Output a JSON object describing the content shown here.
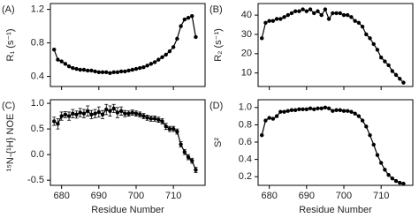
{
  "chart_data": [
    {
      "type": "line",
      "panel_label": "(A)",
      "y_label": "R₁ (s⁻¹)",
      "color": "#000000",
      "x": [
        678,
        679,
        680,
        681,
        682,
        683,
        684,
        685,
        686,
        687,
        688,
        689,
        690,
        691,
        692,
        693,
        694,
        695,
        696,
        697,
        698,
        699,
        700,
        701,
        702,
        703,
        704,
        705,
        706,
        707,
        708,
        709,
        710,
        711,
        712,
        713,
        714,
        715,
        716
      ],
      "values": [
        0.72,
        0.6,
        0.58,
        0.55,
        0.52,
        0.5,
        0.49,
        0.48,
        0.48,
        0.47,
        0.47,
        0.46,
        0.45,
        0.45,
        0.45,
        0.44,
        0.45,
        0.45,
        0.46,
        0.46,
        0.47,
        0.48,
        0.49,
        0.5,
        0.51,
        0.53,
        0.55,
        0.57,
        0.6,
        0.63,
        0.66,
        0.7,
        0.75,
        0.85,
        1.0,
        1.08,
        1.1,
        1.12,
        0.87
      ],
      "xlim": [
        677,
        718.5
      ],
      "xticks": [
        680,
        690,
        700,
        710
      ],
      "ylim": [
        0.28,
        1.27
      ],
      "yticks": [
        0.4,
        0.8,
        1.2
      ]
    },
    {
      "type": "line",
      "panel_label": "(B)",
      "y_label": "R₂ (s⁻¹)",
      "color": "#000000",
      "x": [
        678,
        679,
        680,
        681,
        682,
        683,
        684,
        685,
        686,
        687,
        688,
        689,
        690,
        691,
        692,
        693,
        694,
        695,
        696,
        697,
        698,
        699,
        700,
        701,
        702,
        703,
        704,
        705,
        706,
        707,
        708,
        709,
        710,
        711,
        712,
        713,
        714,
        715,
        716
      ],
      "values": [
        28,
        36,
        37,
        37,
        38,
        38,
        39,
        40,
        41,
        42,
        42,
        43,
        42,
        43,
        41,
        42,
        40,
        43,
        38,
        41,
        41,
        41,
        40,
        40,
        39,
        37,
        36,
        34,
        30,
        28,
        25,
        22,
        18,
        16,
        14,
        11,
        9,
        7,
        5
      ],
      "xlim": [
        677,
        718.5
      ],
      "xticks": [
        680,
        690,
        700,
        710
      ],
      "ylim": [
        3,
        46
      ],
      "yticks": [
        10,
        20,
        30,
        40
      ]
    },
    {
      "type": "line",
      "panel_label": "(C)",
      "y_label": "¹⁵N-{¹H} NOE",
      "x_label": "Residue Number",
      "color": "#000000",
      "x": [
        678,
        679,
        680,
        681,
        682,
        683,
        684,
        685,
        686,
        687,
        688,
        689,
        690,
        691,
        692,
        693,
        694,
        695,
        696,
        697,
        698,
        699,
        700,
        701,
        702,
        703,
        704,
        705,
        706,
        707,
        708,
        709,
        710,
        711,
        712,
        713,
        714,
        715,
        716
      ],
      "values": [
        0.65,
        0.6,
        0.75,
        0.78,
        0.75,
        0.8,
        0.78,
        0.82,
        0.8,
        0.85,
        0.78,
        0.8,
        0.83,
        0.78,
        0.88,
        0.85,
        0.9,
        0.82,
        0.85,
        0.8,
        0.8,
        0.82,
        0.8,
        0.78,
        0.75,
        0.72,
        0.7,
        0.7,
        0.68,
        0.65,
        0.55,
        0.5,
        0.5,
        0.45,
        0.2,
        0.05,
        -0.05,
        -0.12,
        -0.3
      ],
      "errors": [
        0.08,
        0.1,
        0.08,
        0.06,
        0.08,
        0.08,
        0.07,
        0.08,
        0.08,
        0.1,
        0.08,
        0.08,
        0.1,
        0.08,
        0.1,
        0.1,
        0.08,
        0.1,
        0.08,
        0.06,
        0.05,
        0.05,
        0.05,
        0.05,
        0.05,
        0.05,
        0.05,
        0.05,
        0.05,
        0.05,
        0.06,
        0.05,
        0.05,
        0.05,
        0.05,
        0.05,
        0.05,
        0.05,
        0.05
      ],
      "xlim": [
        677,
        718.5
      ],
      "xticks": [
        680,
        690,
        700,
        710
      ],
      "ylim": [
        -0.6,
        1.07
      ],
      "yticks": [
        -0.5,
        {
          "value": 0,
          "label": "0.0"
        },
        0.5,
        {
          "value": 1,
          "label": "1.0"
        }
      ]
    },
    {
      "type": "line",
      "panel_label": "(D)",
      "y_label": "S²",
      "x_label": "Residue Number",
      "color": "#000000",
      "x": [
        678,
        679,
        680,
        681,
        682,
        683,
        684,
        685,
        686,
        687,
        688,
        689,
        690,
        691,
        692,
        693,
        694,
        695,
        696,
        697,
        698,
        699,
        700,
        701,
        702,
        703,
        704,
        705,
        706,
        707,
        708,
        709,
        710,
        711,
        712,
        713,
        714,
        715,
        716
      ],
      "values": [
        0.68,
        0.85,
        0.88,
        0.87,
        0.9,
        0.95,
        0.95,
        0.96,
        0.97,
        0.97,
        0.98,
        0.98,
        0.98,
        0.99,
        0.98,
        0.99,
        0.99,
        1.0,
        0.99,
        0.96,
        0.97,
        0.97,
        0.96,
        0.96,
        0.95,
        0.93,
        0.9,
        0.85,
        0.78,
        0.68,
        0.57,
        0.45,
        0.36,
        0.28,
        0.22,
        0.18,
        0.15,
        0.13,
        0.12
      ],
      "xlim": [
        677,
        718.5
      ],
      "xticks": [
        680,
        690,
        700,
        710
      ],
      "ylim": [
        0.1,
        1.09
      ],
      "yticks": [
        0.2,
        0.4,
        0.6,
        0.8,
        {
          "value": 1,
          "label": "1.0"
        }
      ]
    }
  ]
}
